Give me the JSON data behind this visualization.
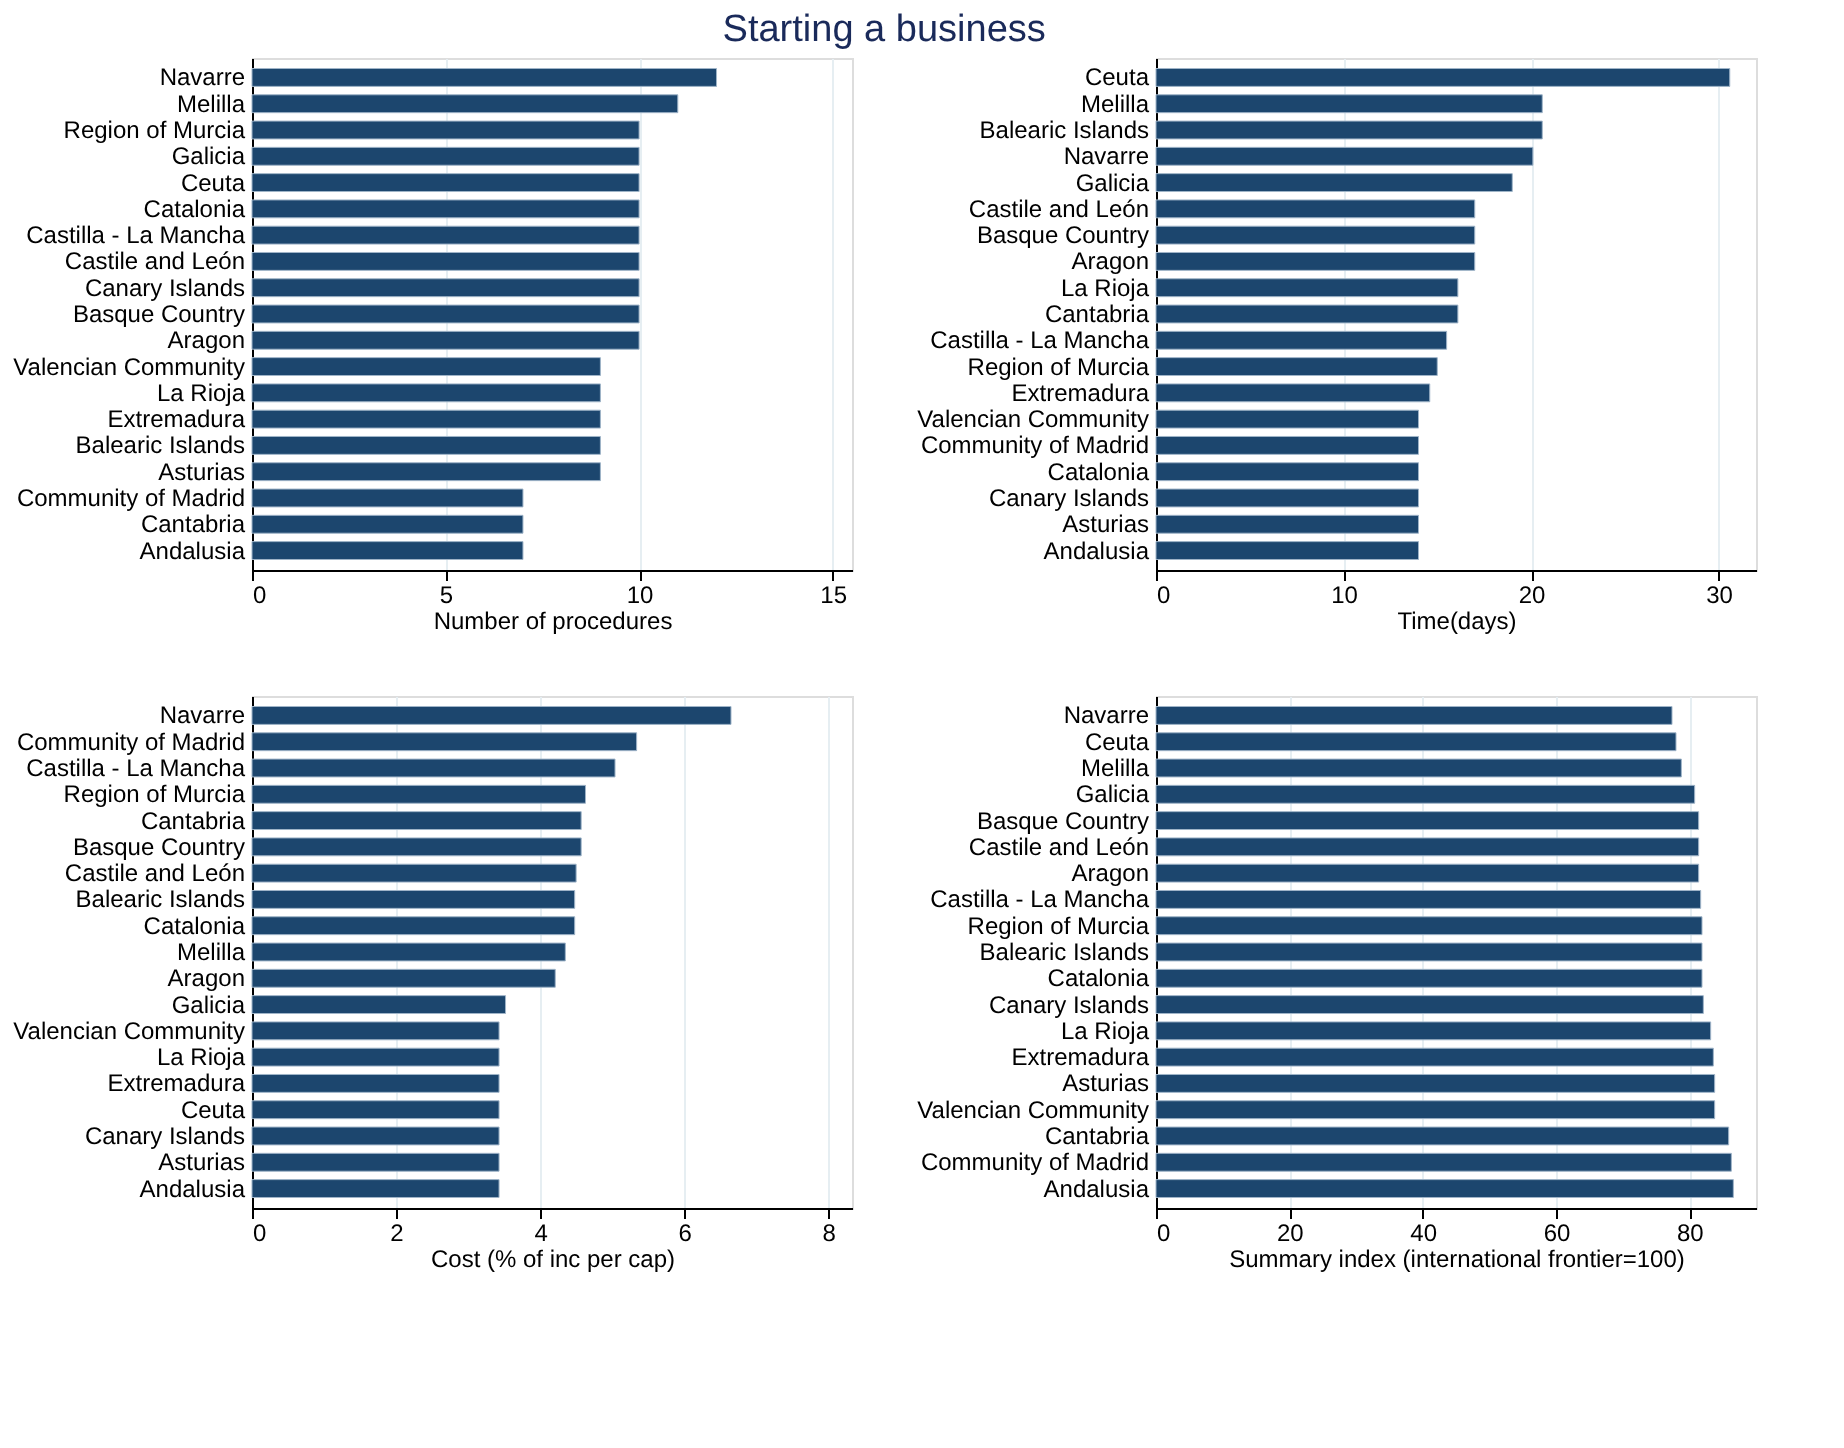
{
  "chart_data": [
    {
      "type": "bar",
      "orientation": "horizontal",
      "title": "Starting a business",
      "xlabel": "Number of procedures",
      "categories": [
        "Navarre",
        "Melilla",
        "Region of Murcia",
        "Galicia",
        "Ceuta",
        "Catalonia",
        "Castilla - La Mancha",
        "Castile and León",
        "Canary Islands",
        "Basque Country",
        "Aragon",
        "Valencian Community",
        "La Rioja",
        "Extremadura",
        "Balearic Islands",
        "Asturias",
        "Community of Madrid",
        "Cantabria",
        "Andalusia"
      ],
      "values": [
        12,
        11,
        10,
        10,
        10,
        10,
        10,
        10,
        10,
        10,
        10,
        9,
        9,
        9,
        9,
        9,
        7,
        7,
        7
      ],
      "color": "#1c466e",
      "xlim": [
        0,
        15.5
      ],
      "xticks": [
        0,
        5,
        10,
        15
      ],
      "grid": "x"
    },
    {
      "type": "bar",
      "orientation": "horizontal",
      "xlabel": "Time(days)",
      "categories": [
        "Ceuta",
        "Melilla",
        "Balearic Islands",
        "Navarre",
        "Galicia",
        "Castile and León",
        "Basque Country",
        "Aragon",
        "La Rioja",
        "Cantabria",
        "Castilla - La Mancha",
        "Region of Murcia",
        "Extremadura",
        "Valencian Community",
        "Community of Madrid",
        "Catalonia",
        "Canary Islands",
        "Asturias",
        "Andalusia"
      ],
      "values": [
        30.6,
        20.6,
        20.6,
        20.1,
        19,
        17,
        17,
        17,
        16.1,
        16.1,
        15.5,
        15,
        14.6,
        14,
        14,
        14,
        14,
        14,
        14
      ],
      "color": "#1c466e",
      "xlim": [
        0,
        32
      ],
      "xticks": [
        0,
        10,
        20,
        30
      ],
      "grid": "x"
    },
    {
      "type": "bar",
      "orientation": "horizontal",
      "xlabel": "Cost (% of inc per cap)",
      "categories": [
        "Navarre",
        "Community of Madrid",
        "Castilla - La Mancha",
        "Region of Murcia",
        "Cantabria",
        "Basque Country",
        "Castile and León",
        "Balearic Islands",
        "Catalonia",
        "Melilla",
        "Aragon",
        "Galicia",
        "Valencian Community",
        "La Rioja",
        "Extremadura",
        "Ceuta",
        "Canary Islands",
        "Asturias",
        "Andalusia"
      ],
      "values": [
        6.65,
        5.34,
        5.04,
        4.63,
        4.57,
        4.57,
        4.5,
        4.48,
        4.48,
        4.35,
        4.21,
        3.52,
        3.43,
        3.43,
        3.43,
        3.43,
        3.43,
        3.43,
        3.43
      ],
      "color": "#1c466e",
      "xlim": [
        0,
        8.33
      ],
      "xticks": [
        0,
        2,
        4,
        6,
        8
      ],
      "grid": "x"
    },
    {
      "type": "bar",
      "orientation": "horizontal",
      "xlabel": "Summary index (international frontier=100)",
      "categories": [
        "Navarre",
        "Ceuta",
        "Melilla",
        "Galicia",
        "Basque Country",
        "Castile and León",
        "Aragon",
        "Castilla - La Mancha",
        "Region of Murcia",
        "Balearic Islands",
        "Catalonia",
        "Canary Islands",
        "La Rioja",
        "Extremadura",
        "Asturias",
        "Valencian Community",
        "Cantabria",
        "Community of Madrid",
        "Andalusia"
      ],
      "values": [
        77.4,
        78,
        78.8,
        80.8,
        81.4,
        81.4,
        81.4,
        81.7,
        81.9,
        81.9,
        81.9,
        82.1,
        83.2,
        83.6,
        83.8,
        83.8,
        85.9,
        86.3,
        86.6
      ],
      "color": "#1c466e",
      "xlim": [
        0,
        90
      ],
      "xticks": [
        0,
        20,
        40,
        60,
        80
      ],
      "grid": "x"
    }
  ]
}
